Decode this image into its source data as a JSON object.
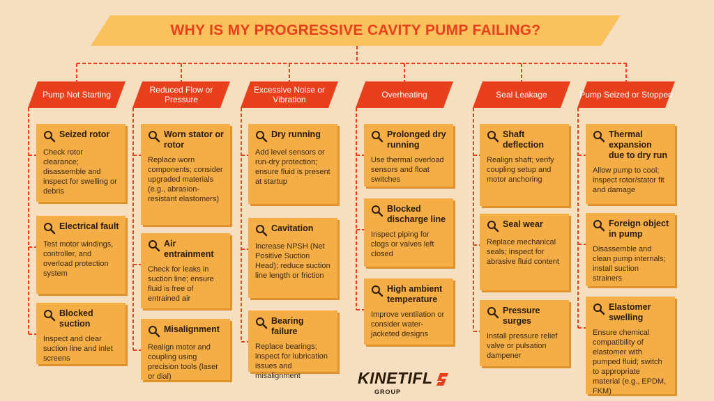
{
  "title": "WHY IS MY PROGRESSIVE CAVITY PUMP FAILING?",
  "colors": {
    "background": "#f6dfc0",
    "banner": "#f9c25c",
    "accent": "#e8401c",
    "card": "#f5ad45",
    "card_shadow": "#e0922c"
  },
  "icon": "magnifier-icon",
  "categories": [
    {
      "label": "Pump Not Starting",
      "items": [
        {
          "title": "Seized rotor",
          "body": "Check rotor clearance; disassemble and inspect for swelling or debris"
        },
        {
          "title": "Electrical fault",
          "body": "Test motor windings, controller, and overload protection system"
        },
        {
          "title": "Blocked suction",
          "body": "Inspect and clear suction line and inlet screens"
        }
      ]
    },
    {
      "label": "Reduced Flow or Pressure",
      "items": [
        {
          "title": "Worn stator or rotor",
          "body": "Replace worn components; consider upgraded materials (e.g., abrasion-resistant elastomers)"
        },
        {
          "title": "Air entrainment",
          "body": "Check for leaks in suction line; ensure fluid is free of entrained air"
        },
        {
          "title": "Misalignment",
          "body": "Realign motor and coupling using precision tools (laser or dial)"
        }
      ]
    },
    {
      "label": "Excessive Noise or Vibration",
      "items": [
        {
          "title": "Dry running",
          "body": "Add level sensors or run-dry protection; ensure fluid is present at startup"
        },
        {
          "title": "Cavitation",
          "body": "Increase NPSH (Net Positive Suction Head); reduce suction line length or friction"
        },
        {
          "title": "Bearing failure",
          "body": "Replace bearings; inspect for lubrication issues and misalignment"
        }
      ]
    },
    {
      "label": "Overheating",
      "items": [
        {
          "title": "Prolonged dry running",
          "body": "Use thermal overload sensors and float switches"
        },
        {
          "title": "Blocked discharge line",
          "body": "Inspect piping for clogs or valves left closed"
        },
        {
          "title": "High ambient temperature",
          "body": "Improve ventilation or consider water-jacketed designs"
        }
      ]
    },
    {
      "label": "Seal Leakage",
      "items": [
        {
          "title": "Shaft deflection",
          "body": "Realign shaft; verify coupling setup and motor anchoring"
        },
        {
          "title": "Seal wear",
          "body": "Replace mechanical seals; inspect for abrasive fluid content"
        },
        {
          "title": "Pressure surges",
          "body": "Install pressure relief valve or pulsation dampener"
        }
      ]
    },
    {
      "label": "Pump Seized or Stopped",
      "items": [
        {
          "title": "Thermal expansion due to dry run",
          "body": "Allow pump to cool; inspect rotor/stator fit and damage"
        },
        {
          "title": "Foreign object in pump",
          "body": "Disassemble and clean pump internals; install suction strainers"
        },
        {
          "title": "Elastomer swelling",
          "body": "Ensure chemical compatibility of elastomer with pumped fluid; switch to appropriate material (e.g., EPDM, FKM)"
        }
      ]
    }
  ],
  "logo": {
    "name": "KINETIFL",
    "subtitle": "GROUP",
    "mark_icon": "kinetiflo-mark-icon"
  }
}
